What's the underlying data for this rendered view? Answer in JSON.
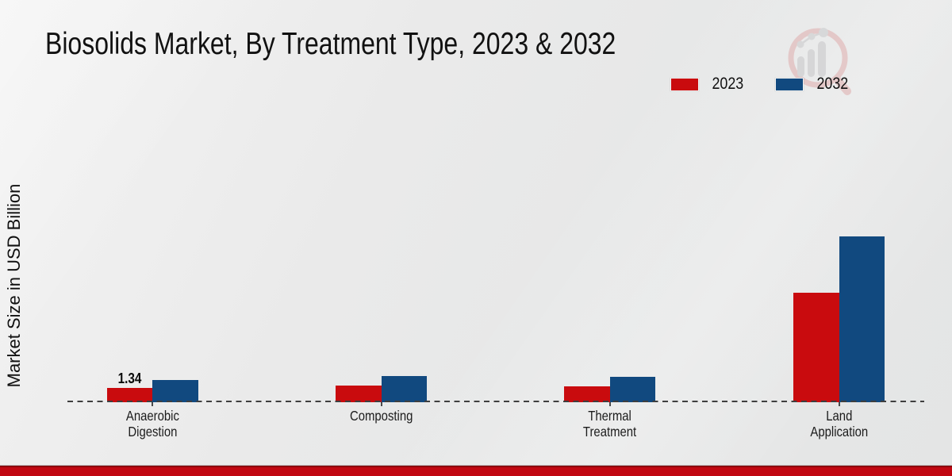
{
  "title": "Biosolids Market, By Treatment Type, 2023 & 2032",
  "y_axis_label": "Market Size in USD Billion",
  "legend": {
    "items": [
      {
        "label": "2023",
        "color": "#c90b0e"
      },
      {
        "label": "2032",
        "color": "#11497f"
      }
    ],
    "position": "top-right"
  },
  "watermark_icon": "magnifier-bar-chart-logo",
  "colors": {
    "series_2023": "#c90b0e",
    "series_2032": "#11497f",
    "background": "#eaeaea",
    "bottom_strip": "#c10711",
    "baseline_dash": "#3f3f3f",
    "watermark_ring": "#dfadad",
    "watermark_bars": "#c6c6c8"
  },
  "chart_data": {
    "type": "bar",
    "title": "Biosolids Market, By Treatment Type, 2023 & 2032",
    "xlabel": "",
    "ylabel": "Market Size in USD Billion",
    "categories": [
      "Anaerobic Digestion",
      "Composting",
      "Thermal Treatment",
      "Land Application"
    ],
    "categories_lines": [
      [
        "Anaerobic",
        "Digestion"
      ],
      [
        "Composting"
      ],
      [
        "Thermal",
        "Treatment"
      ],
      [
        "Land",
        "Application"
      ]
    ],
    "series": [
      {
        "name": "2023",
        "color": "#c90b0e",
        "values": [
          1.34,
          1.56,
          1.49,
          10.28
        ]
      },
      {
        "name": "2032",
        "color": "#11497f",
        "values": [
          2.11,
          2.44,
          2.38,
          15.63
        ]
      }
    ],
    "annotations": [
      {
        "category_index": 0,
        "series": "2023",
        "text": "1.34"
      }
    ],
    "ylim": [
      0,
      17
    ],
    "grid": false,
    "axis_line": "dashed-horizontal-baseline-only",
    "legend_position": "top-right"
  }
}
